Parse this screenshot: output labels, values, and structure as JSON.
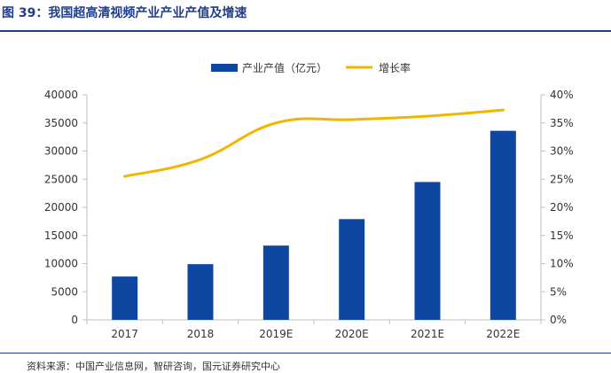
{
  "figure": {
    "title": "图 39：我国超高清视频产业产业产值及增速",
    "source": "资料来源：中国产业信息网，智研咨询，国元证券研究中心"
  },
  "colors": {
    "bar": "#0d47a1",
    "line": "#f2b500",
    "title": "#1f3f8a",
    "axis": "#bfbfbf",
    "text": "#333333"
  },
  "chart_data": {
    "type": "bar",
    "categories": [
      "2017",
      "2018",
      "2019E",
      "2020E",
      "2021E",
      "2022E"
    ],
    "series": [
      {
        "name": "产业产值（亿元）",
        "type": "bar",
        "axis": "left",
        "values": [
          7700,
          9900,
          13200,
          17900,
          24500,
          33600
        ]
      },
      {
        "name": "增长率",
        "type": "line",
        "axis": "right",
        "values": [
          25.5,
          28.5,
          35.0,
          35.6,
          36.2,
          37.3
        ]
      }
    ],
    "y_left": {
      "ylim": [
        0,
        40000
      ],
      "ticks": [
        "0",
        "5000",
        "10000",
        "15000",
        "20000",
        "25000",
        "30000",
        "35000",
        "40000"
      ]
    },
    "y_right": {
      "ylim": [
        0,
        40
      ],
      "unit": "%",
      "ticks": [
        "0%",
        "5%",
        "10%",
        "15%",
        "20%",
        "25%",
        "30%",
        "35%",
        "40%"
      ]
    },
    "legend": {
      "position": "top-center",
      "items": [
        "产业产值（亿元）",
        "增长率"
      ]
    },
    "grid": false
  }
}
